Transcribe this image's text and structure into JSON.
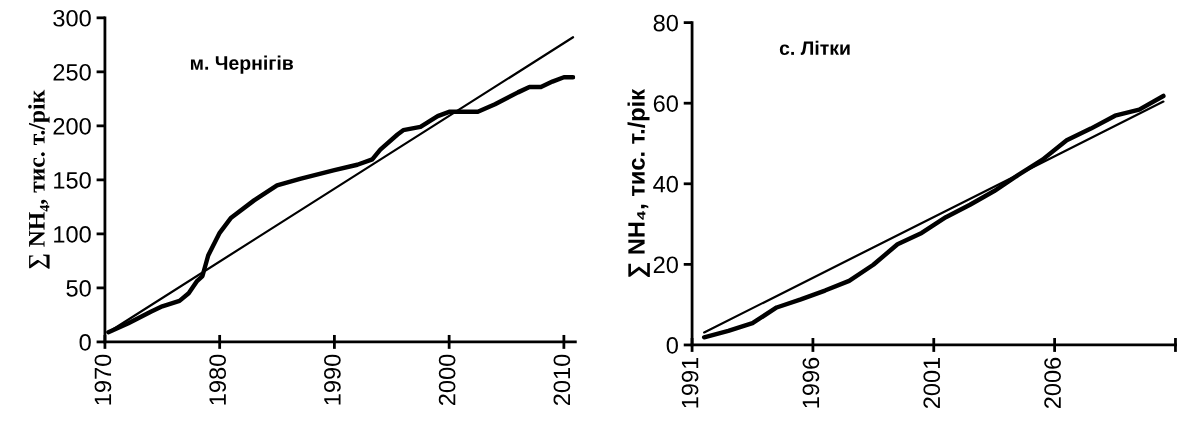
{
  "chart_data": [
    {
      "type": "line",
      "title": "м. Чернігів",
      "ylabel": "∑ NH₄, тис. т./рік",
      "xlim": [
        1970,
        2011
      ],
      "ylim": [
        0,
        300
      ],
      "xticks": [
        1970,
        1980,
        1990,
        2000,
        2010
      ],
      "yticks": [
        0,
        50,
        100,
        150,
        200,
        250,
        300
      ],
      "grid": false,
      "legend": false,
      "marker": "none",
      "line_style": "solid",
      "series": [
        {
          "color": "#000000",
          "x": [
            1970.3,
            1972,
            1974,
            1975,
            1976.5,
            1977.3,
            1978,
            1978.5,
            1979,
            1980,
            1981,
            1983,
            1985,
            1987,
            1990,
            1992,
            1993.3,
            1994,
            1995.5,
            1996,
            1997.5,
            1999,
            2000,
            2001,
            2002.5,
            2004,
            2006,
            2007,
            2008,
            2009,
            2010,
            2010.8
          ],
          "values": [
            9,
            17,
            28,
            33,
            38,
            45,
            56,
            61,
            80,
            101,
            115,
            131,
            145,
            151,
            159,
            164,
            169,
            178,
            192,
            196,
            199,
            209,
            213,
            213,
            213,
            220,
            231,
            236,
            236,
            241,
            245,
            245
          ]
        },
        {
          "type": "line",
          "color": "#000000",
          "x": [
            1970.3,
            2010.8
          ],
          "values": [
            9,
            282
          ]
        }
      ]
    },
    {
      "type": "line",
      "title": "с. Літки",
      "ylabel": "∑ NH₄, тис. т./рік",
      "xlim": [
        1991,
        2011
      ],
      "ylim": [
        0,
        80
      ],
      "xticks": [
        1991,
        1996,
        2001,
        2006,
        {
          "value": 2011,
          "label": null
        }
      ],
      "yticks": [
        0,
        20,
        40,
        60,
        80
      ],
      "grid": false,
      "legend": false,
      "marker": "none",
      "line_style": "solid",
      "series": [
        {
          "color": "#000000",
          "x": [
            1991.5,
            1992.5,
            1993.5,
            1994.5,
            1995.5,
            1996.5,
            1997.5,
            1998.5,
            1999.5,
            2000.5,
            2001.5,
            2002.5,
            2003.5,
            2004.5,
            2005.5,
            2006.5,
            2007.5,
            2008.5,
            2009.5,
            2010.5
          ],
          "values": [
            1.9,
            3.5,
            5.4,
            9.3,
            11.3,
            13.5,
            15.9,
            19.9,
            25,
            27.8,
            31.7,
            34.8,
            38.2,
            42.2,
            46,
            50.8,
            53.7,
            56.9,
            58.4,
            61.8
          ]
        },
        {
          "type": "line",
          "color": "#000000",
          "x": [
            1991.5,
            2010.5
          ],
          "values": [
            3.1,
            60.4
          ]
        }
      ]
    }
  ]
}
